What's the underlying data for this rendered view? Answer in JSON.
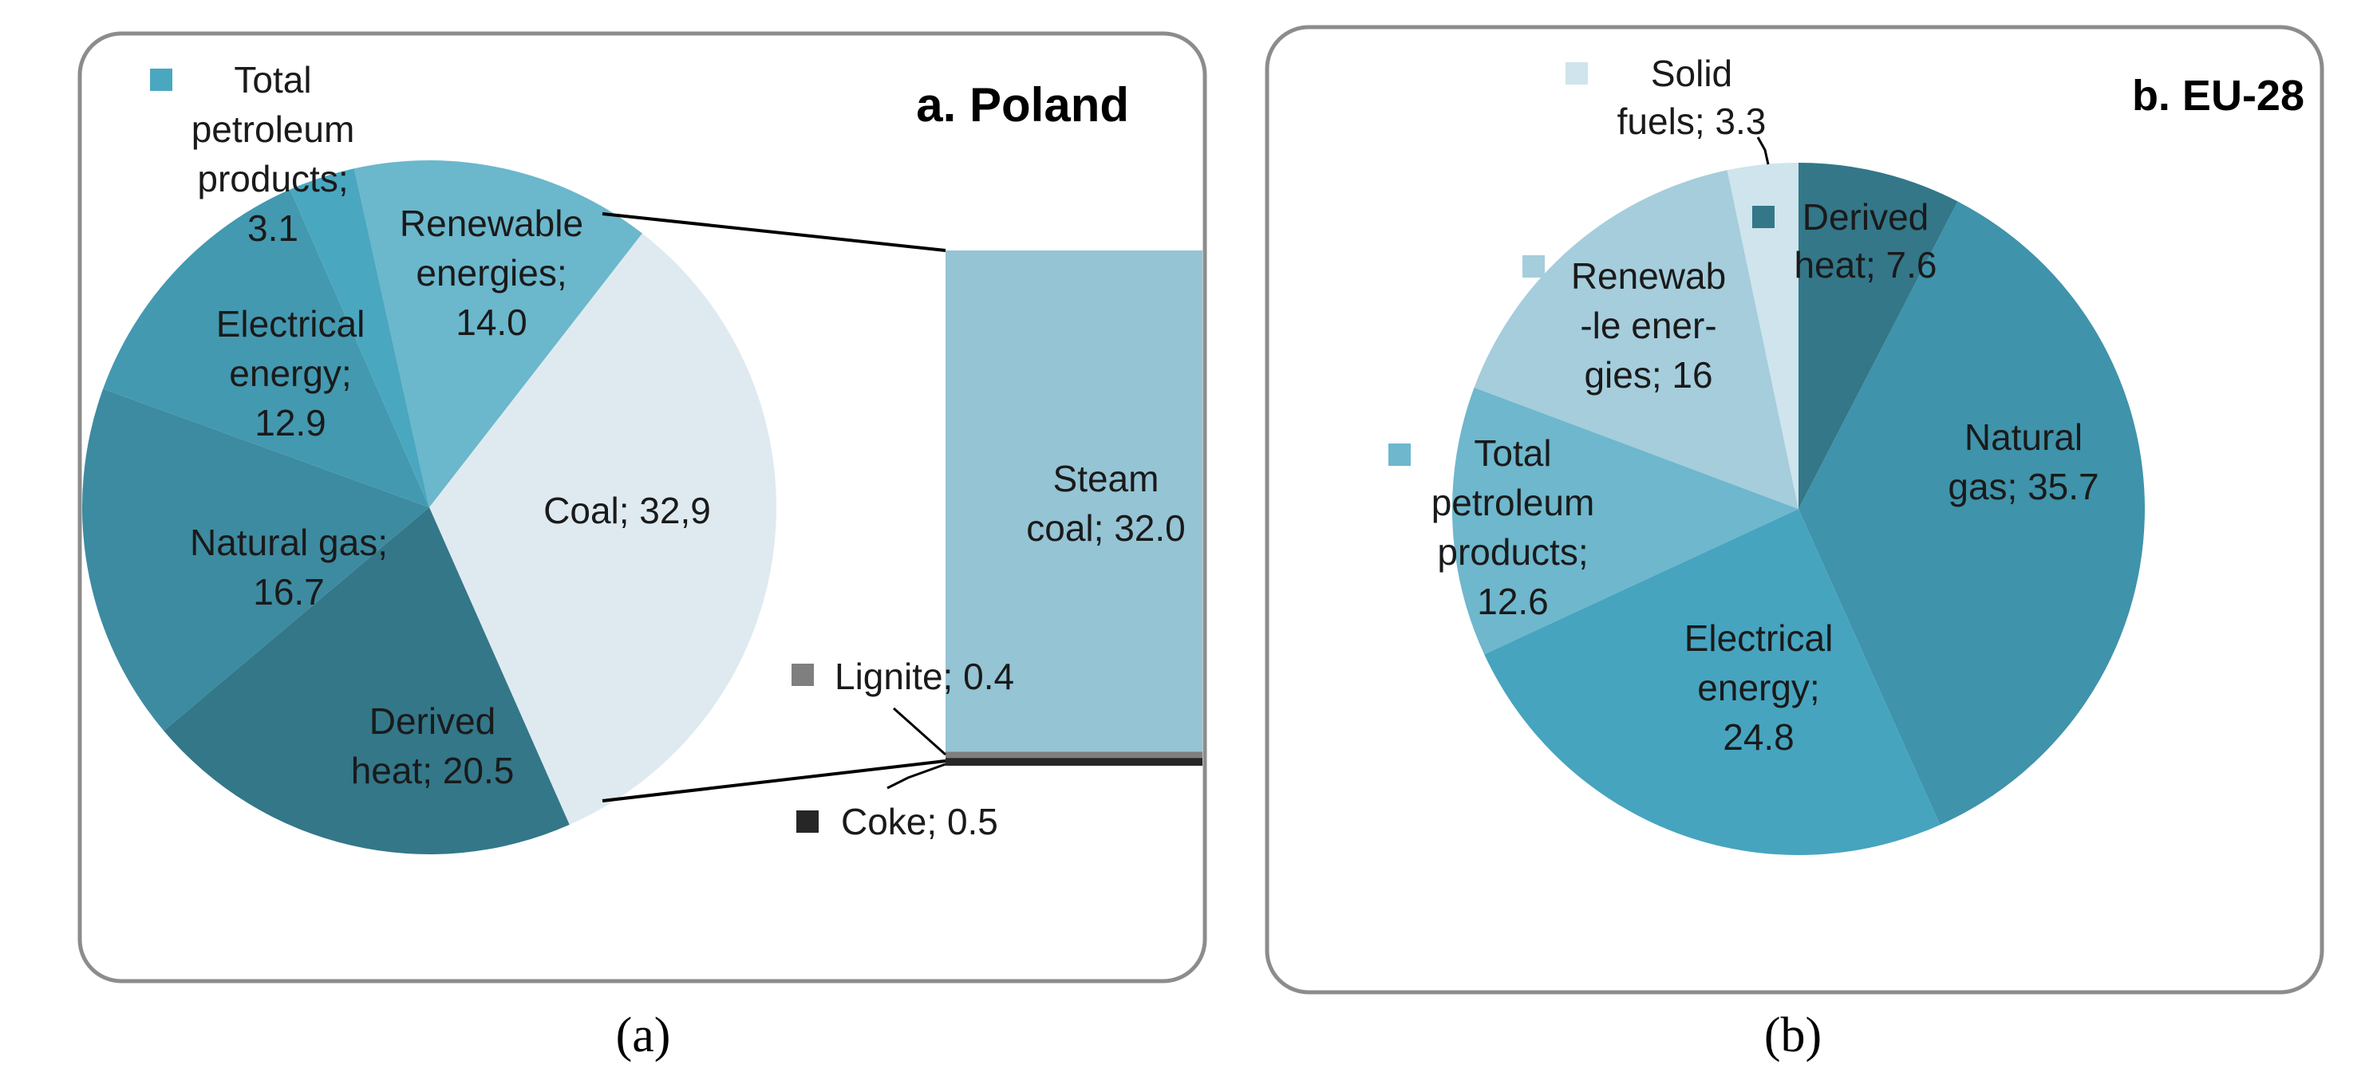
{
  "captions": {
    "a": "(a)",
    "b": "(b)"
  },
  "chart_data": [
    {
      "type": "pie",
      "title": "a. Poland",
      "slices": [
        {
          "name": "Coal",
          "label": "Coal; 32,9",
          "value": 32.9,
          "color": "#dfeaf0"
        },
        {
          "name": "Derived heat",
          "label": "Derived heat; 20.5",
          "value": 20.5,
          "color": "#337789"
        },
        {
          "name": "Natural gas",
          "label": "Natural gas; 16.7",
          "value": 16.7,
          "color": "#3d8ba1"
        },
        {
          "name": "Electrical energy",
          "label": "Electrical energy; 12.9",
          "value": 12.9,
          "color": "#4399b0"
        },
        {
          "name": "Total petroleum products",
          "label": "Total petroleum products; 3.1",
          "value": 3.1,
          "color": "#4aa7c0"
        },
        {
          "name": "Renewable energies",
          "label": "Renewable energies; 14.0",
          "value": 14.0,
          "color": "#6bb7cc"
        }
      ],
      "breakout": {
        "of": "Coal",
        "type": "stacked-bar",
        "segments": [
          {
            "name": "Steam coal",
            "label": "Steam coal; 32.0",
            "value": 32.0,
            "color": "#95c4d4"
          },
          {
            "name": "Lignite",
            "label": "Lignite; 0.4",
            "value": 0.4,
            "color": "#7f7f7f"
          },
          {
            "name": "Coke",
            "label": "Coke; 0.5",
            "value": 0.5,
            "color": "#262626"
          }
        ]
      }
    },
    {
      "type": "pie",
      "title": "b. EU-28",
      "slices": [
        {
          "name": "Derived heat",
          "label": "Derived heat; 7.6",
          "value": 7.6,
          "color": "#337789"
        },
        {
          "name": "Natural gas",
          "label": "Natural gas; 35.7",
          "value": 35.7,
          "color": "#3f93aa"
        },
        {
          "name": "Electrical energy",
          "label": "Electrical energy; 24.8",
          "value": 24.8,
          "color": "#46a4bf"
        },
        {
          "name": "Total petroleum products",
          "label": "Total petroleum products; 12.6",
          "value": 12.6,
          "color": "#6eb7cd"
        },
        {
          "name": "Renewable energies",
          "label": "Renewab-le ener-gies; 16",
          "value": 16,
          "color": "#a5cddc"
        },
        {
          "name": "Solid fuels",
          "label": "Solid fuels; 3.3",
          "value": 3.3,
          "color": "#cfe4ec"
        }
      ]
    }
  ],
  "labels": {
    "a": {
      "petroleum": [
        "Total",
        "petroleum",
        "products;",
        "3.1"
      ],
      "renewable": [
        "Renewable",
        "energies;",
        "14.0"
      ],
      "electrical": [
        "Electrical",
        "energy;",
        "12.9"
      ],
      "gas": [
        "Natural gas;",
        "16.7"
      ],
      "coal": [
        "Coal; 32,9"
      ],
      "heat": [
        "Derived",
        "heat; 20.5"
      ],
      "steam": [
        "Steam",
        "coal; 32.0"
      ],
      "lignite": [
        "Lignite; 0.4"
      ],
      "coke": [
        "Coke; 0.5"
      ]
    },
    "b": {
      "solid": [
        "Solid",
        "fuels; 3.3"
      ],
      "heat": [
        "Derived",
        "heat; 7.6"
      ],
      "renewable": [
        "Renewab",
        "-le ener-",
        "gies; 16"
      ],
      "gas": [
        "Natural",
        "gas; 35.7"
      ],
      "petroleum": [
        "Total",
        "petroleum",
        "products;",
        "12.6"
      ],
      "electrical": [
        "Electrical",
        "energy;",
        "24.8"
      ]
    }
  }
}
